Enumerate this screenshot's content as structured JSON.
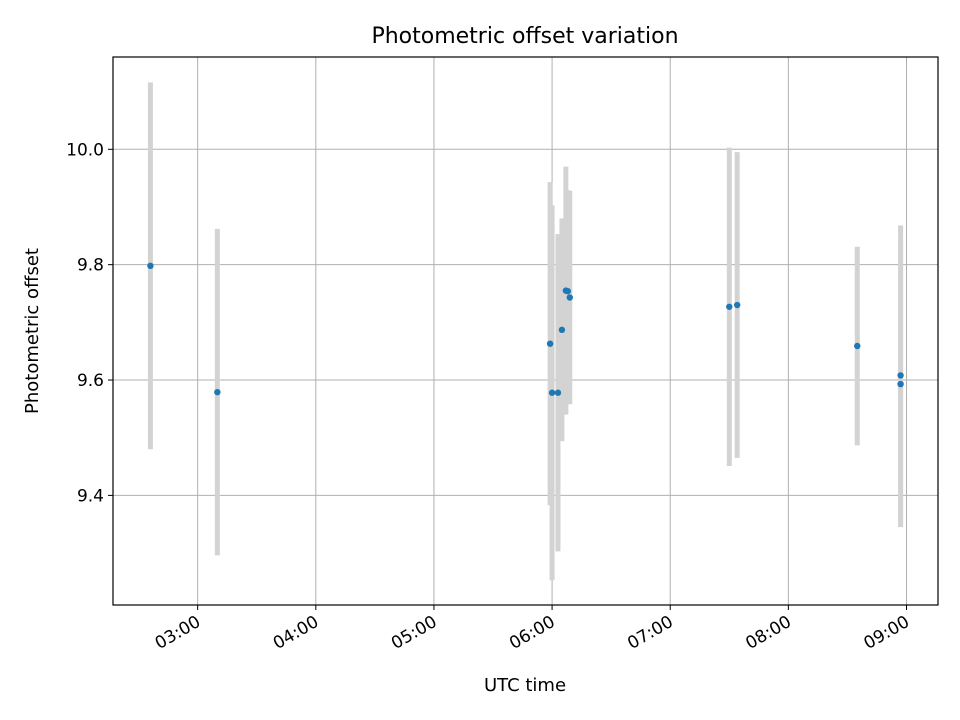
{
  "chart_data": {
    "type": "scatter",
    "title": "Photometric offset variation",
    "xlabel": "UTC time",
    "ylabel": "Photometric offset",
    "x_axis_type": "time",
    "xlim": [
      "02:17",
      "09:16"
    ],
    "ylim": [
      9.21,
      10.16
    ],
    "xticks": [
      "03:00",
      "04:00",
      "05:00",
      "06:00",
      "07:00",
      "08:00",
      "09:00"
    ],
    "yticks": [
      9.4,
      9.6,
      9.8,
      10.0
    ],
    "ytick_labels": [
      "9.4",
      "9.6",
      "9.8",
      "10.0"
    ],
    "grid": true,
    "legend": "none",
    "colors": {
      "point": "#1f77b4",
      "errorbar": "#d3d3d3",
      "grid": "#b0b0b0",
      "axes": "#000000"
    },
    "points": [
      {
        "x": "02:36",
        "y": 9.798,
        "err": 0.318
      },
      {
        "x": "03:10",
        "y": 9.579,
        "err": 0.283
      },
      {
        "x": "05:59",
        "y": 9.663,
        "err": 0.28
      },
      {
        "x": "06:00",
        "y": 9.578,
        "err": 0.325
      },
      {
        "x": "06:03",
        "y": 9.578,
        "err": 0.275
      },
      {
        "x": "06:05",
        "y": 9.687,
        "err": 0.193
      },
      {
        "x": "06:07",
        "y": 9.755,
        "err": 0.215
      },
      {
        "x": "06:08",
        "y": 9.754,
        "err": 0.175
      },
      {
        "x": "06:09",
        "y": 9.743,
        "err": 0.185
      },
      {
        "x": "07:30",
        "y": 9.727,
        "err": 0.276
      },
      {
        "x": "07:34",
        "y": 9.73,
        "err": 0.265
      },
      {
        "x": "08:35",
        "y": 9.659,
        "err": 0.172
      },
      {
        "x": "08:57",
        "y": 9.593,
        "err": 0.248
      },
      {
        "x": "08:57",
        "y": 9.608,
        "err": 0.26
      }
    ]
  }
}
